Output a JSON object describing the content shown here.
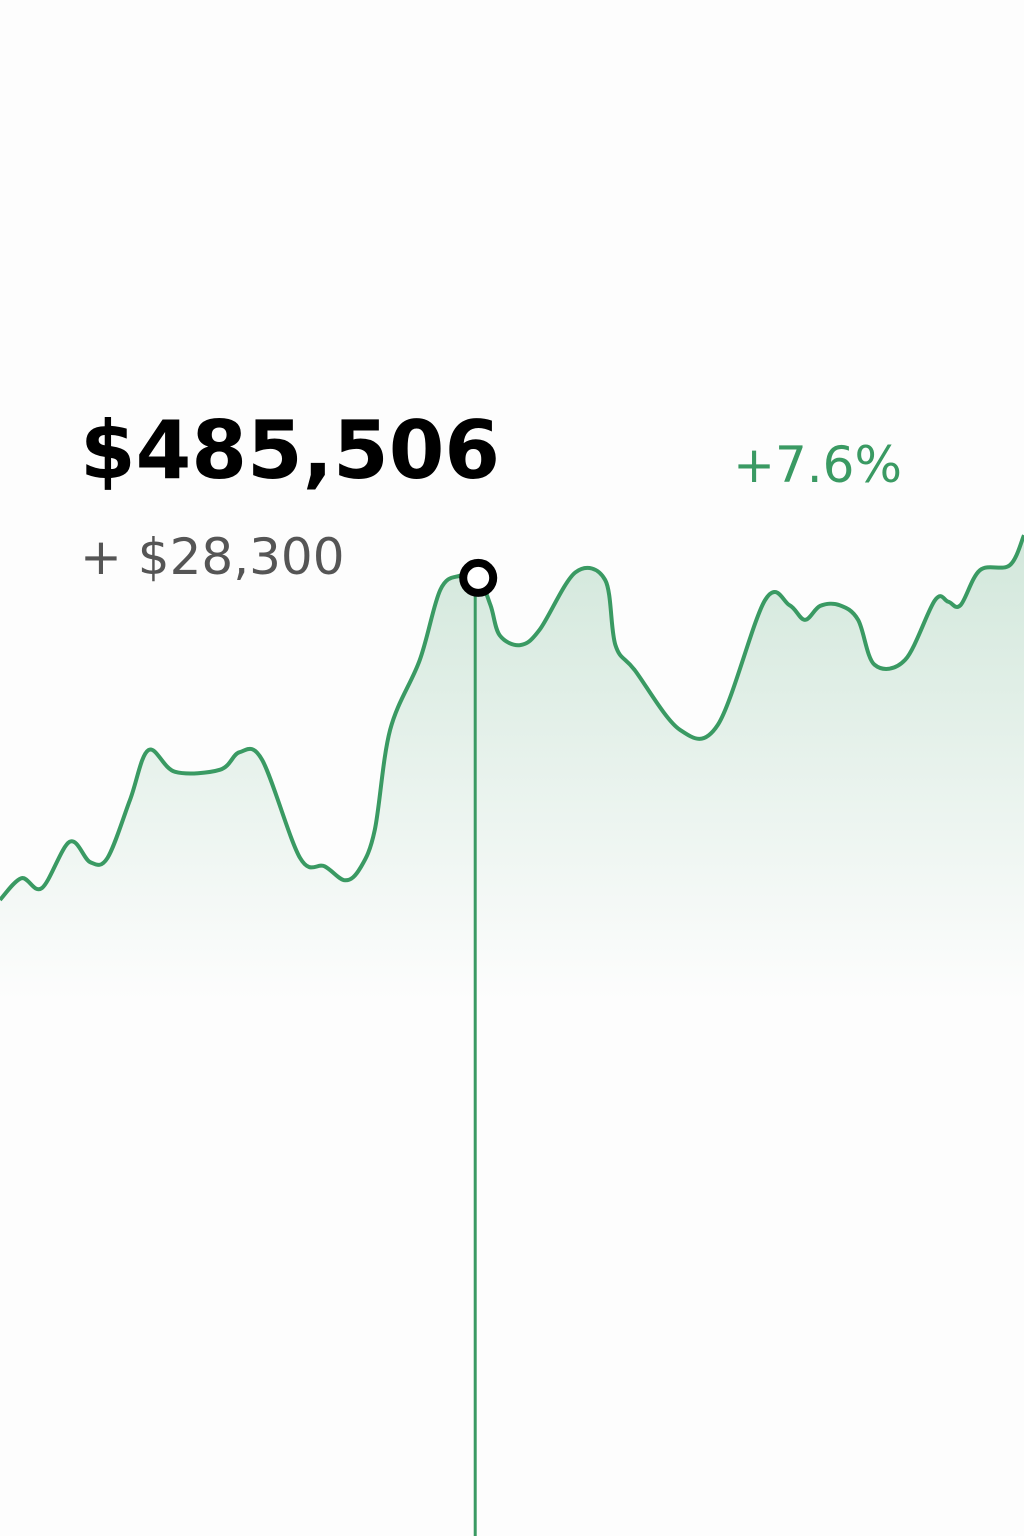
{
  "header": {
    "value": "$485,506",
    "change": "+ $28,300",
    "change_pct": "+7.6%"
  },
  "chart_data": {
    "type": "line",
    "color": "#3a9a63",
    "x": [
      0,
      2.1,
      4.1,
      6.8,
      8.8,
      10.5,
      12.7,
      14.5,
      17.1,
      21.5,
      23.4,
      25.6,
      29.3,
      31.7,
      33.7,
      35.2,
      36.6,
      38.1,
      41.0,
      43.0,
      44.9,
      46.7,
      47.9,
      48.8,
      50.8,
      52.7,
      56.2,
      59.1,
      60.1,
      62.0,
      66.4,
      70.1,
      74.7,
      77.1,
      78.6,
      80.1,
      82.0,
      83.8,
      85.4,
      88.4,
      91.3,
      92.6,
      93.8,
      95.7,
      98.6,
      100
    ],
    "series": [
      {
        "values": [
          14.3,
          17.4,
          16,
          22.6,
          19.7,
          20.3,
          28.6,
          35.7,
          32.6,
          32.9,
          35.4,
          34.3,
          20.3,
          19.1,
          17.1,
          18.9,
          24.3,
          38.6,
          48.6,
          58.6,
          60.6,
          60.3,
          56.4,
          52.1,
          50.7,
          52.9,
          61.1,
          60,
          50.7,
          47.1,
          38.6,
          39.3,
          57.1,
          56.4,
          54.3,
          56.3,
          56.4,
          54.3,
          47.9,
          48.6,
          57.1,
          56.9,
          56.4,
          61.4,
          62.1,
          66.4
        ]
      }
    ],
    "xlim": [
      0,
      100
    ],
    "ylim": [
      0,
      100
    ],
    "highlight_index": 21
  }
}
